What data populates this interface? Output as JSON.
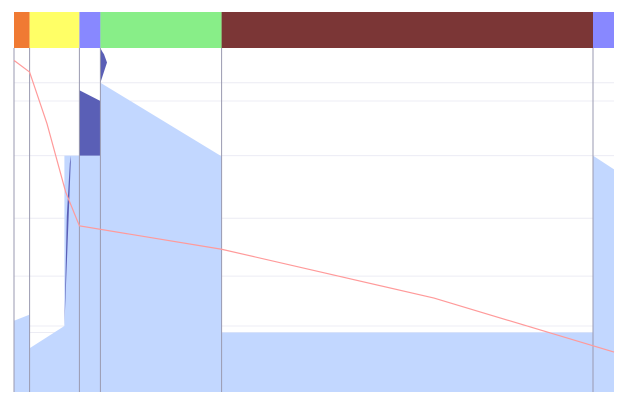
{
  "chart_data": {
    "type": "area",
    "title": "",
    "xlabel": "",
    "ylabel": "",
    "grid": true,
    "legend": "none",
    "xlim": [
      0,
      100
    ],
    "ylim": [
      0,
      100
    ],
    "phases": [
      {
        "start": 0.0,
        "end": 2.6,
        "color": "#f07a33"
      },
      {
        "start": 2.6,
        "end": 10.9,
        "color": "#ffff66"
      },
      {
        "start": 10.9,
        "end": 14.4,
        "color": "#8888ff"
      },
      {
        "start": 14.4,
        "end": 34.6,
        "color": "#88ee88"
      },
      {
        "start": 34.6,
        "end": 96.5,
        "color": "#7b3636"
      },
      {
        "start": 96.5,
        "end": 100.0,
        "color": "#8888ff"
      }
    ],
    "boundaries": [
      0.0,
      2.6,
      10.9,
      14.4,
      34.6,
      96.5
    ],
    "series": [
      {
        "kind": "area",
        "color": "#c2d7ff",
        "segments": [
          [
            [
              0.0,
              20.7
            ],
            [
              2.6,
              22.5
            ],
            [
              2.6,
              12.7
            ],
            [
              8.4,
              19.2
            ],
            [
              8.4,
              68.7
            ],
            [
              10.9,
              68.7
            ],
            [
              10.9,
              68.7
            ],
            [
              14.4,
              68.7
            ],
            [
              14.4,
              89.9
            ],
            [
              34.6,
              68.5
            ],
            [
              34.6,
              17.3
            ],
            [
              96.5,
              17.3
            ],
            [
              96.5,
              68.7
            ],
            [
              100.0,
              64.7
            ]
          ]
        ]
      },
      {
        "kind": "band",
        "color": "#5a5fb6",
        "segments": [
          [
            [
              8.4,
              19.2
            ],
            [
              8.8,
              51.0
            ],
            [
              9.3,
              66.5
            ],
            [
              9.5,
              68.7
            ],
            [
              10.9,
              68.7
            ],
            [
              10.9,
              87.7
            ],
            [
              14.4,
              84.6
            ],
            [
              14.4,
              68.7
            ],
            [
              10.9,
              68.7
            ],
            [
              9.5,
              68.7
            ],
            [
              8.4,
              19.2
            ]
          ],
          [
            [
              14.4,
              100
            ],
            [
              14.7,
              99.0
            ],
            [
              15.0,
              98.2
            ],
            [
              15.5,
              95.8
            ],
            [
              14.4,
              89.9
            ]
          ]
        ]
      },
      {
        "kind": "line",
        "color": "#ff9a9a",
        "points": [
          [
            0.0,
            96.4
          ],
          [
            2.6,
            93.0
          ],
          [
            5.5,
            78.0
          ],
          [
            8.6,
            58.2
          ],
          [
            10.9,
            48.3
          ],
          [
            34.6,
            41.5
          ],
          [
            70.0,
            27.3
          ],
          [
            100.0,
            11.6
          ]
        ]
      }
    ],
    "hgrid_values": [
      17.3,
      19.2,
      33.7,
      50.5,
      68.7,
      84.6,
      89.9
    ]
  }
}
